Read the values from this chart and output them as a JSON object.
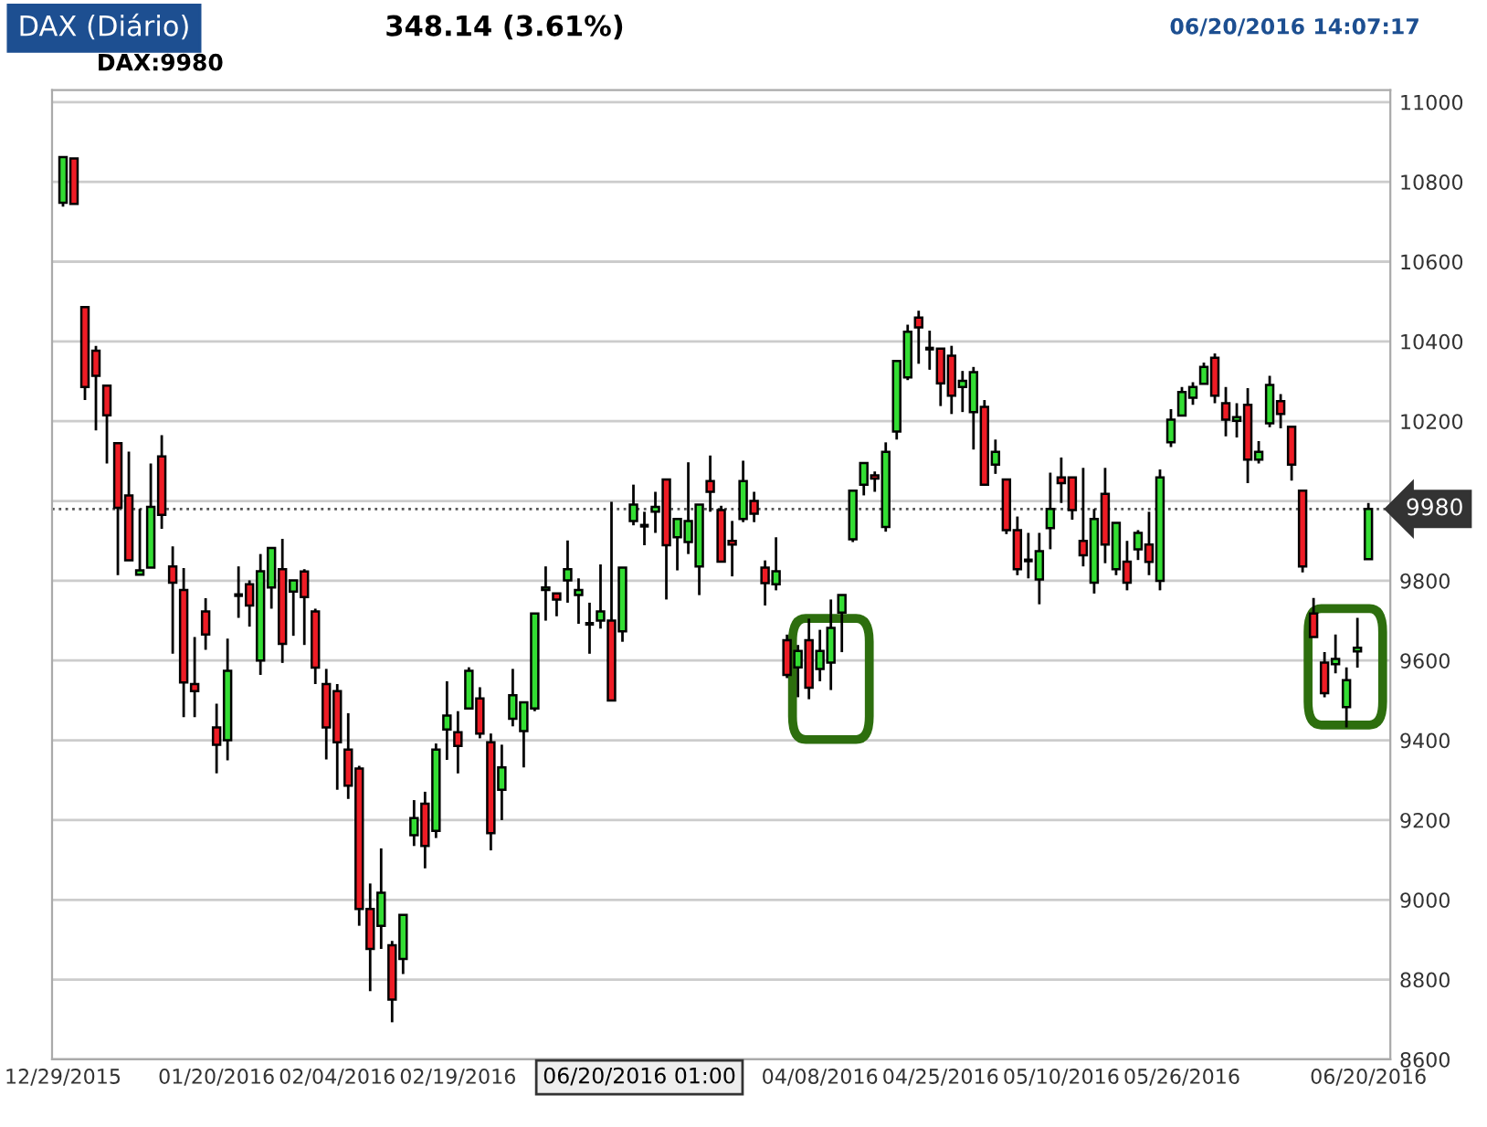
{
  "chart_data": {
    "type": "candlestick",
    "title": "DAX (Diário)",
    "subtitle": "348.14 (3.61%)",
    "annotations": [
      "DAX:9980",
      "06/20/2016 14:07:17",
      "06/20/2016 01:00"
    ],
    "categories": [
      "12/29/2015",
      null,
      null,
      null,
      null,
      null,
      null,
      null,
      null,
      null,
      null,
      null,
      null,
      null,
      "01/20/2016",
      null,
      null,
      null,
      null,
      null,
      null,
      null,
      null,
      null,
      null,
      "02/04/2016",
      null,
      null,
      null,
      null,
      null,
      null,
      null,
      null,
      null,
      null,
      "02/19/2016",
      null,
      null,
      null,
      null,
      null,
      null,
      null,
      null,
      null,
      null,
      null,
      null,
      null,
      null,
      null,
      null,
      null,
      null,
      null,
      null,
      null,
      null,
      null,
      null,
      null,
      null,
      null,
      null,
      null,
      null,
      null,
      null,
      "04/08/2016",
      null,
      null,
      null,
      null,
      null,
      null,
      null,
      null,
      null,
      null,
      "04/25/2016",
      null,
      null,
      null,
      null,
      null,
      null,
      null,
      null,
      null,
      null,
      "05/10/2016",
      null,
      null,
      null,
      null,
      null,
      null,
      null,
      null,
      null,
      null,
      "05/26/2016",
      null,
      null,
      null,
      null,
      null,
      null,
      null,
      null,
      null,
      null,
      null,
      null,
      null,
      null,
      null,
      null,
      "06/20/2016"
    ],
    "ohlc": [
      [
        10748,
        10862,
        10738,
        10862
      ],
      [
        10859,
        10859,
        10745,
        10745
      ],
      [
        10486,
        10486,
        10253,
        10286
      ],
      [
        10377,
        10389,
        10177,
        10314
      ],
      [
        10289,
        10289,
        10094,
        10215
      ],
      [
        10145,
        10145,
        9814,
        9983
      ],
      [
        10014,
        10124,
        9851,
        9851
      ],
      [
        9815,
        9980,
        9814,
        9826
      ],
      [
        9833,
        10094,
        9833,
        9985
      ],
      [
        10112,
        10165,
        9930,
        9965
      ],
      [
        9836,
        9886,
        9617,
        9795
      ],
      [
        9777,
        9832,
        9458,
        9545
      ],
      [
        9541,
        9659,
        9458,
        9523
      ],
      [
        9723,
        9756,
        9627,
        9665
      ],
      [
        9432,
        9492,
        9317,
        9389
      ],
      [
        9400,
        9655,
        9350,
        9574
      ],
      [
        9764,
        9836,
        9707,
        9764
      ],
      [
        9791,
        9801,
        9685,
        9738
      ],
      [
        9600,
        9867,
        9564,
        9824
      ],
      [
        9783,
        9882,
        9730,
        9882
      ],
      [
        9829,
        9905,
        9594,
        9642
      ],
      [
        9773,
        9801,
        9662,
        9801
      ],
      [
        9823,
        9829,
        9639,
        9759
      ],
      [
        9723,
        9730,
        9541,
        9582
      ],
      [
        9541,
        9579,
        9352,
        9432
      ],
      [
        9523,
        9541,
        9276,
        9395
      ],
      [
        9377,
        9468,
        9253,
        9286
      ],
      [
        9329,
        9336,
        8935,
        8977
      ],
      [
        8977,
        9041,
        8771,
        8877
      ],
      [
        8935,
        9129,
        8877,
        9018
      ],
      [
        8886,
        8897,
        8693,
        8750
      ],
      [
        8852,
        8962,
        8814,
        8962
      ],
      [
        9162,
        9250,
        9135,
        9205
      ],
      [
        9241,
        9271,
        9079,
        9135
      ],
      [
        9173,
        9392,
        9155,
        9377
      ],
      [
        9427,
        9548,
        9351,
        9462
      ],
      [
        9420,
        9473,
        9317,
        9386
      ],
      [
        9480,
        9583,
        9480,
        9574
      ],
      [
        9505,
        9533,
        9405,
        9417
      ],
      [
        9395,
        9417,
        9124,
        9167
      ],
      [
        9276,
        9389,
        9200,
        9332
      ],
      [
        9454,
        9579,
        9435,
        9513
      ],
      [
        9423,
        9495,
        9332,
        9495
      ],
      [
        9480,
        9718,
        9473,
        9718
      ],
      [
        9777,
        9836,
        9700,
        9783
      ],
      [
        9768,
        9768,
        9711,
        9753
      ],
      [
        9801,
        9901,
        9745,
        9829
      ],
      [
        9764,
        9806,
        9692,
        9777
      ],
      [
        9692,
        9745,
        9617,
        9692
      ],
      [
        9700,
        9841,
        9680,
        9723
      ],
      [
        9700,
        9998,
        9500,
        9500
      ],
      [
        9673,
        9833,
        9647,
        9833
      ],
      [
        9950,
        10041,
        9939,
        9991
      ],
      [
        9938,
        9973,
        9889,
        9938
      ],
      [
        9973,
        10023,
        9920,
        9985
      ],
      [
        10054,
        10054,
        9753,
        9889
      ],
      [
        9909,
        9955,
        9826,
        9955
      ],
      [
        9897,
        10097,
        9867,
        9950
      ],
      [
        9836,
        9991,
        9764,
        9991
      ],
      [
        10050,
        10114,
        9973,
        10023
      ],
      [
        9977,
        9988,
        9848,
        9848
      ],
      [
        9900,
        9950,
        9811,
        9891
      ],
      [
        9955,
        10101,
        9947,
        10050
      ],
      [
        10000,
        10023,
        9947,
        9968
      ],
      [
        9833,
        9851,
        9738,
        9794
      ],
      [
        9791,
        9909,
        9776,
        9824
      ],
      [
        9651,
        9665,
        9556,
        9564
      ],
      [
        9583,
        9639,
        9508,
        9624
      ],
      [
        9651,
        9705,
        9503,
        9532
      ],
      [
        9579,
        9677,
        9548,
        9624
      ],
      [
        9595,
        9753,
        9526,
        9682
      ],
      [
        9720,
        9764,
        9621,
        9764
      ],
      [
        9904,
        10026,
        9897,
        10026
      ],
      [
        10041,
        10095,
        10014,
        10095
      ],
      [
        10064,
        10074,
        10023,
        10056
      ],
      [
        9935,
        10147,
        9923,
        10123
      ],
      [
        10174,
        10351,
        10154,
        10351
      ],
      [
        10310,
        10442,
        10303,
        10424
      ],
      [
        10460,
        10477,
        10344,
        10435
      ],
      [
        10382,
        10427,
        10329,
        10382
      ],
      [
        10382,
        10382,
        10238,
        10295
      ],
      [
        10364,
        10389,
        10218,
        10264
      ],
      [
        10286,
        10326,
        10223,
        10301
      ],
      [
        10223,
        10336,
        10129,
        10323
      ],
      [
        10236,
        10253,
        10041,
        10041
      ],
      [
        10091,
        10154,
        10068,
        10123
      ],
      [
        10054,
        10054,
        9917,
        9927
      ],
      [
        9927,
        9961,
        9814,
        9829
      ],
      [
        9851,
        9920,
        9806,
        9851
      ],
      [
        9803,
        9920,
        9741,
        9874
      ],
      [
        9932,
        10071,
        9879,
        9980
      ],
      [
        10059,
        10109,
        9995,
        10045
      ],
      [
        10059,
        10059,
        9953,
        9977
      ],
      [
        9900,
        10083,
        9836,
        9864
      ],
      [
        9795,
        9980,
        9768,
        9955
      ],
      [
        10018,
        10083,
        9844,
        9891
      ],
      [
        9829,
        9945,
        9814,
        9945
      ],
      [
        9848,
        9900,
        9776,
        9795
      ],
      [
        9879,
        9927,
        9852,
        9920
      ],
      [
        9891,
        9973,
        9814,
        9847
      ],
      [
        9800,
        10079,
        9776,
        10059
      ],
      [
        10147,
        10230,
        10135,
        10204
      ],
      [
        10214,
        10286,
        10214,
        10273
      ],
      [
        10259,
        10298,
        10241,
        10286
      ],
      [
        10294,
        10347,
        10294,
        10336
      ],
      [
        10359,
        10370,
        10245,
        10264
      ],
      [
        10245,
        10286,
        10162,
        10204
      ],
      [
        10201,
        10245,
        10159,
        10210
      ],
      [
        10241,
        10283,
        10045,
        10104
      ],
      [
        10104,
        10150,
        10094,
        10123
      ],
      [
        10195,
        10314,
        10185,
        10291
      ],
      [
        10250,
        10268,
        10182,
        10218
      ],
      [
        10186,
        10186,
        10051,
        10091
      ],
      [
        10026,
        10026,
        9821,
        9836
      ],
      [
        9718,
        9757,
        9659,
        9659
      ],
      [
        9595,
        9621,
        9508,
        9518
      ],
      [
        9591,
        9665,
        9568,
        9604
      ],
      [
        9483,
        9583,
        9432,
        9551
      ],
      [
        9623,
        9707,
        9582,
        9632
      ],
      [
        9854,
        9995,
        9854,
        9980
      ]
    ],
    "colors": [
      "#33dd33",
      "#ee1c25",
      "#ee1c25",
      "#ee1c25",
      "#ee1c25",
      "#ee1c25",
      "#ee1c25",
      "#33dd33",
      "#33dd33",
      "#ee1c25",
      "#ee1c25",
      "#ee1c25",
      "#ee1c25",
      "#ee1c25",
      "#ee1c25",
      "#33dd33",
      "#000000",
      "#ee1c25",
      "#33dd33",
      "#33dd33",
      "#ee1c25",
      "#33dd33",
      "#ee1c25",
      "#ee1c25",
      "#ee1c25",
      "#ee1c25",
      "#ee1c25",
      "#ee1c25",
      "#ee1c25",
      "#33dd33",
      "#ee1c25",
      "#33dd33",
      "#33dd33",
      "#ee1c25",
      "#33dd33",
      "#33dd33",
      "#ee1c25",
      "#33dd33",
      "#ee1c25",
      "#ee1c25",
      "#33dd33",
      "#33dd33",
      "#33dd33",
      "#33dd33",
      "#33dd33",
      "#ee1c25",
      "#33dd33",
      "#33dd33",
      "#000000",
      "#33dd33",
      "#ee1c25",
      "#33dd33",
      "#33dd33",
      "#000000",
      "#33dd33",
      "#ee1c25",
      "#33dd33",
      "#33dd33",
      "#33dd33",
      "#ee1c25",
      "#ee1c25",
      "#ee1c25",
      "#33dd33",
      "#ee1c25",
      "#ee1c25",
      "#33dd33",
      "#ee1c25",
      "#33dd33",
      "#ee1c25",
      "#33dd33",
      "#33dd33",
      "#33dd33",
      "#33dd33",
      "#33dd33",
      "#ee1c25",
      "#33dd33",
      "#33dd33",
      "#33dd33",
      "#ee1c25",
      "#000000",
      "#ee1c25",
      "#ee1c25",
      "#33dd33",
      "#33dd33",
      "#ee1c25",
      "#33dd33",
      "#ee1c25",
      "#ee1c25",
      "#000000",
      "#33dd33",
      "#33dd33",
      "#ee1c25",
      "#ee1c25",
      "#ee1c25",
      "#33dd33",
      "#ee1c25",
      "#33dd33",
      "#ee1c25",
      "#33dd33",
      "#ee1c25",
      "#33dd33",
      "#33dd33",
      "#33dd33",
      "#33dd33",
      "#33dd33",
      "#ee1c25",
      "#ee1c25",
      "#33dd33",
      "#ee1c25",
      "#33dd33",
      "#33dd33",
      "#ee1c25",
      "#ee1c25",
      "#ee1c25",
      "#ee1c25",
      "#ee1c25",
      "#33dd33",
      "#33dd33",
      "#33dd33",
      "#33dd33"
    ],
    "ylim": [
      8600,
      11030
    ],
    "yticks": [
      8600,
      8800,
      9000,
      9200,
      9400,
      9600,
      9800,
      {
        "value": 10000,
        "label": null
      },
      10200,
      10400,
      10600,
      10800,
      11000
    ],
    "grid": "y",
    "ref_lines": [
      {
        "axis": "y",
        "value": 9980,
        "label": "9980",
        "line_style": "dotted",
        "color": "#555555"
      }
    ]
  }
}
